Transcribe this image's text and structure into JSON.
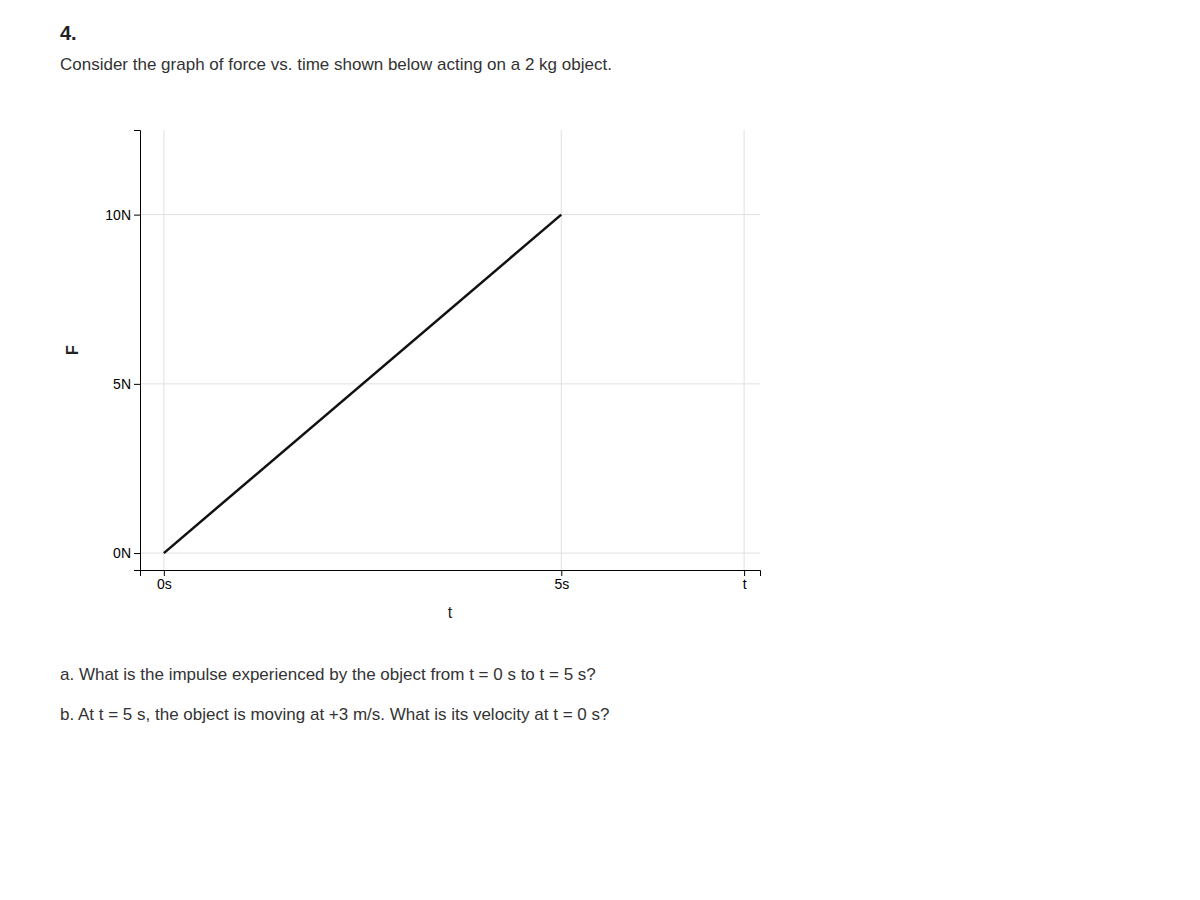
{
  "chart_data": {
    "type": "line",
    "title": "4.",
    "subtitle": "Consider the graph of force vs. time shown below acting on a 2 kg object.",
    "x_label": "t",
    "y_label": "F",
    "x": [
      0,
      5
    ],
    "values": [
      0,
      10
    ],
    "color": "#111111",
    "xlim": [
      -0.3,
      7.5
    ],
    "ylim": [
      -0.5,
      12.5
    ],
    "xticks": [
      {
        "value": 0,
        "label": "0s"
      },
      {
        "value": 5,
        "label": "5s"
      },
      {
        "value": 7.3,
        "label": "t"
      }
    ],
    "yticks": [
      {
        "value": 0,
        "label": "0N"
      },
      {
        "value": 5,
        "label": "5N"
      },
      {
        "value": 10,
        "label": "10N"
      }
    ],
    "grid": true,
    "annotations": [
      "a.  What is the impulse experienced by the object from t = 0 s to t = 5 s?",
      "b.  At t = 5 s, the object is moving at +3 m/s.  What is its velocity at t = 0 s?"
    ]
  }
}
